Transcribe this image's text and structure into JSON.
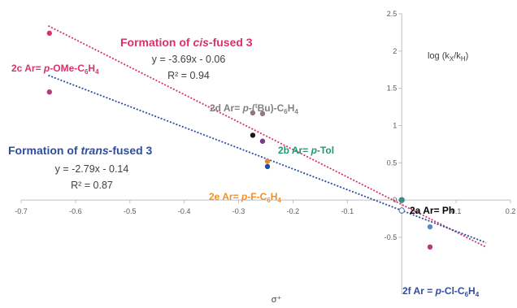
{
  "chart_data": {
    "type": "scatter",
    "xlabel": "σ⁺",
    "ylabel": "log (kX/kH)",
    "xlim": [
      -0.7,
      0.2
    ],
    "ylim": [
      -0.5,
      2.5
    ],
    "x_ticks": [
      "-0.7",
      "-0.6",
      "-0.5",
      "-0.4",
      "-0.3",
      "-0.2",
      "-0.1",
      "0",
      "0.1",
      "0.2"
    ],
    "y_ticks": [
      "-0.5",
      "0",
      "0.5",
      "1",
      "1.5",
      "2",
      "2.5"
    ],
    "grid": false,
    "series": [
      {
        "name": "Formation of cis-fused 3",
        "color": "#d6336c",
        "points": [
          {
            "x": -0.648,
            "y": 2.24
          },
          {
            "x": -0.648,
            "y": 1.45
          },
          {
            "x": -0.274,
            "y": 1.17
          },
          {
            "x": -0.256,
            "y": 1.16
          },
          {
            "x": -0.247,
            "y": 0.52
          },
          {
            "x": 0.0,
            "y": 0.0
          },
          {
            "x": 0.052,
            "y": -0.36
          }
        ],
        "fit": {
          "slope": -3.69,
          "intercept": -0.06,
          "equation": "y = -3.69x - 0.06",
          "r2": "R² = 0.94"
        }
      },
      {
        "name": "Formation of trans-fused 3",
        "color": "#2b4ea2",
        "points": [
          {
            "x": -0.274,
            "y": 0.87
          },
          {
            "x": -0.256,
            "y": 0.79
          },
          {
            "x": -0.247,
            "y": 0.45
          },
          {
            "x": 0.0,
            "y": -0.14
          },
          {
            "x": 0.052,
            "y": -0.63
          }
        ],
        "fit": {
          "slope": -2.79,
          "intercept": -0.14,
          "equation": "y = -2.79x - 0.14",
          "r2": "R² = 0.87"
        }
      }
    ],
    "point_colors": [
      "#d6336c",
      "#b03a7a",
      "#9a6f7c",
      "#8b7b86",
      "#e08a2e",
      "#2e9a6c",
      "#5b8ac4",
      "#1a1a1a",
      "#7a3a8a",
      "#1f4ea8"
    ],
    "labels": {
      "cis_title_pre": "Formation of ",
      "cis_title_em": "cis",
      "cis_title_post": "-fused 3",
      "trans_title_pre": "Formation of ",
      "trans_title_em": "trans",
      "trans_title_post": "-fused 3",
      "c2_pre": "2c Ar= ",
      "c2_em": "p",
      "c2_post": "-OMe-C",
      "c2_sub": "6",
      "c2_post2": "H",
      "c2_sub2": "4",
      "d2_pre": "2d Ar= ",
      "d2_em": "p",
      "d2_mid": "-(",
      "d2_sup": "t",
      "d2_post": "Bu)-C",
      "d2_sub": "6",
      "d2_post2": "H",
      "d2_sub2": "4",
      "b2_pre": "2b Ar= ",
      "b2_em": "p",
      "b2_post": "-Tol",
      "e2_pre": "2e Ar= ",
      "e2_em": "p",
      "e2_post": "-F-C",
      "e2_sub": "6",
      "e2_post2": "H",
      "e2_sub2": "4",
      "a2": "2a Ar= Ph",
      "f2_pre": "2f Ar = ",
      "f2_em": "p",
      "f2_post": "-Cl-C",
      "f2_sub": "6",
      "f2_post2": "H",
      "f2_sub2": "4",
      "ylab_pre": "log (k",
      "ylab_sub1": "X",
      "ylab_mid": "/k",
      "ylab_sub2": "H",
      "ylab_post": ")"
    },
    "label_colors": {
      "c2": "#d6336c",
      "d2": "#808080",
      "b2": "#1f9a6a",
      "e2": "#f0902a",
      "a2": "#000000",
      "f2": "#2b4ea2"
    }
  }
}
